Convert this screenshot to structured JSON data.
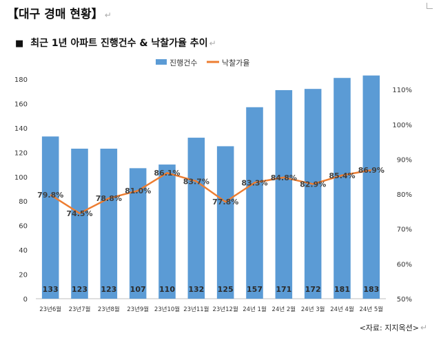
{
  "page": {
    "title": "【대구 경매 현황】",
    "return_mark": "↵",
    "subtitle_square": "■",
    "subtitle": "최근 1년 아파트 진행건수 & 낙찰가율 추이",
    "source": "<자료: 지지옥션>"
  },
  "chart_data": {
    "type": "bar",
    "categories": [
      "23년6월",
      "23년7월",
      "23년8월",
      "23년9월",
      "23년10월",
      "23년11월",
      "23년12월",
      "24년 1월",
      "24년 2월",
      "24년 3월",
      "24년 4월",
      "24년 5월"
    ],
    "series": [
      {
        "name": "진행건수",
        "type": "bar",
        "axis": "left",
        "color": "#5B9BD5",
        "values": [
          133,
          123,
          123,
          107,
          110,
          132,
          125,
          157,
          171,
          172,
          181,
          183
        ],
        "labels": [
          "133",
          "123",
          "123",
          "107",
          "110",
          "132",
          "125",
          "157",
          "171",
          "172",
          "181",
          "183"
        ]
      },
      {
        "name": "낙찰가율",
        "type": "line",
        "axis": "right",
        "color": "#ED7D31",
        "values": [
          79.8,
          74.5,
          78.8,
          81.0,
          86.1,
          83.7,
          77.8,
          83.3,
          84.8,
          82.9,
          85.4,
          86.9
        ],
        "labels": [
          "79.8%",
          "74.5%",
          "78.8%",
          "81.0%",
          "86.1%",
          "83.7%",
          "77.8%",
          "83.3%",
          "84.8%",
          "82.9%",
          "85.4%",
          "86.9%"
        ]
      }
    ],
    "y_left": {
      "range": [
        0,
        180
      ],
      "ticks": [
        0,
        20,
        40,
        60,
        80,
        100,
        120,
        140,
        160,
        180
      ],
      "tick_labels": [
        "0",
        "20",
        "40",
        "60",
        "80",
        "100",
        "120",
        "140",
        "160",
        "180"
      ]
    },
    "y_right": {
      "range": [
        50,
        113
      ],
      "ticks": [
        50,
        60,
        70,
        80,
        90,
        100,
        110
      ],
      "tick_labels": [
        "50%",
        "60%",
        "70%",
        "80%",
        "90%",
        "100%",
        "110%"
      ]
    },
    "legend": {
      "position": "top-center"
    },
    "grid": false
  }
}
